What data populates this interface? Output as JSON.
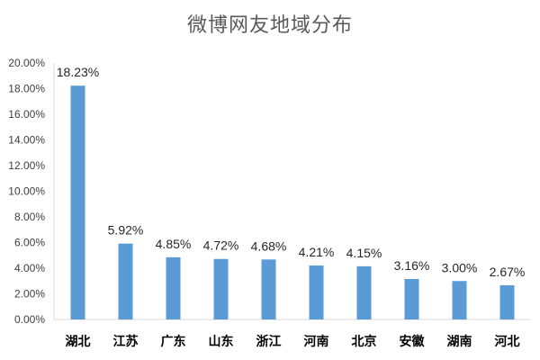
{
  "chart_data": {
    "type": "bar",
    "title": "微博网友地域分布",
    "xlabel": "",
    "ylabel": "",
    "categories": [
      "湖北",
      "江苏",
      "广东",
      "山东",
      "浙江",
      "河南",
      "北京",
      "安徽",
      "湖南",
      "河北"
    ],
    "values": [
      18.23,
      5.92,
      4.85,
      4.72,
      4.68,
      4.21,
      4.15,
      3.16,
      3.0,
      2.67
    ],
    "value_labels": [
      "18.23%",
      "5.92%",
      "4.85%",
      "4.72%",
      "4.68%",
      "4.21%",
      "4.15%",
      "3.16%",
      "3.00%",
      "2.67%"
    ],
    "yticks": [
      "0.00%",
      "2.00%",
      "4.00%",
      "6.00%",
      "8.00%",
      "10.00%",
      "12.00%",
      "14.00%",
      "16.00%",
      "18.00%",
      "20.00%"
    ],
    "ylim": [
      0,
      20
    ],
    "grid": false,
    "legend": "none",
    "bar_color": "#5b9bd5",
    "axis_color": "#d9d9d9"
  }
}
